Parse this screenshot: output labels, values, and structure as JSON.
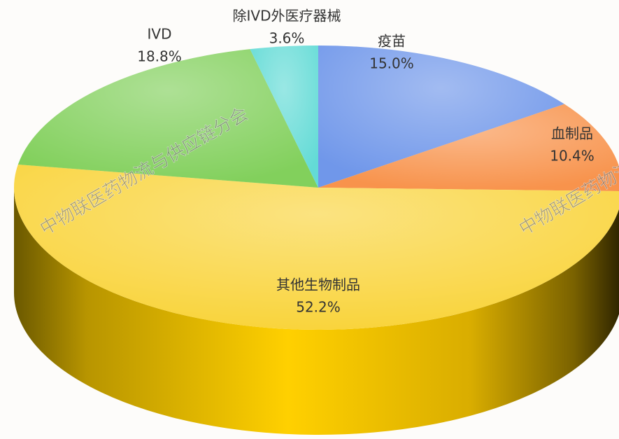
{
  "chart_data": {
    "type": "pie",
    "categories": [
      "疫苗",
      "血制品",
      "其他生物制品",
      "IVD",
      "除IVD外医疗器械"
    ],
    "values": [
      15.0,
      10.4,
      52.2,
      18.8,
      3.6
    ],
    "value_labels": [
      "15.0%",
      "10.4%",
      "52.2%",
      "18.8%",
      "3.6%"
    ],
    "colors": [
      "#7097ea",
      "#f8934c",
      "#f9d43c",
      "#82d05c",
      "#63dbd6"
    ],
    "watermark": "中物联医药物流与供应链分会"
  }
}
